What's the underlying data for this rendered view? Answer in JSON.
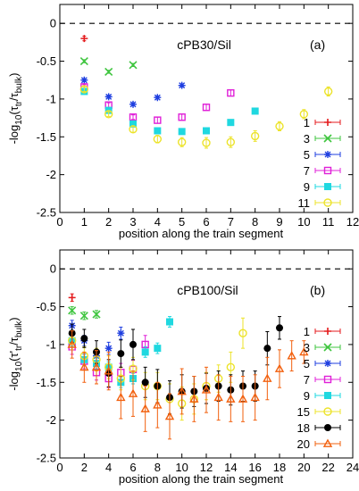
{
  "chart_data": [
    {
      "type": "scatter",
      "panel_label": "(a)",
      "sample_label": "cPB30/Sil",
      "xlabel": "position along the train segment",
      "ylabel_main": "-log",
      "ylabel_sub10": "10",
      "ylabel_open": "(τ",
      "ylabel_tr": "tr",
      "ylabel_slash": "/τ",
      "ylabel_bulk": "bulk",
      "ylabel_close": ")",
      "xlim": [
        0,
        12
      ],
      "ylim": [
        -2.5,
        0.25
      ],
      "xticks": [
        0,
        1,
        2,
        3,
        4,
        5,
        6,
        7,
        8,
        9,
        10,
        11,
        12
      ],
      "yticks": [
        0,
        -0.5,
        -1,
        -1.5,
        -2,
        -2.5
      ],
      "ytick_labels": [
        "0",
        "-0.5",
        "-1",
        "-1.5",
        "-2",
        "-2.5"
      ],
      "reference_line_y": 0,
      "legend_position": "lower-right",
      "series": [
        {
          "name": "1",
          "color": "#e41a1c",
          "marker": "plus",
          "points": [
            [
              1,
              -0.2,
              0.03
            ]
          ]
        },
        {
          "name": "3",
          "color": "#3fc53f",
          "marker": "x",
          "points": [
            [
              1,
              -0.5,
              0.02
            ],
            [
              2,
              -0.64,
              0.02
            ],
            [
              3,
              -0.55,
              0.02
            ]
          ]
        },
        {
          "name": "5",
          "color": "#1f3fe0",
          "marker": "asterisk",
          "points": [
            [
              1,
              -0.75,
              0.02
            ],
            [
              2,
              -0.97,
              0.02
            ],
            [
              3,
              -1.07,
              0.02
            ],
            [
              4,
              -0.98,
              0.02
            ],
            [
              5,
              -0.82,
              0.02
            ]
          ]
        },
        {
          "name": "7",
          "color": "#e020d8",
          "marker": "square-open",
          "points": [
            [
              1,
              -0.84,
              0.03
            ],
            [
              2,
              -1.08,
              0.03
            ],
            [
              3,
              -1.24,
              0.03
            ],
            [
              4,
              -1.28,
              0.04
            ],
            [
              5,
              -1.24,
              0.04
            ],
            [
              6,
              -1.11,
              0.04
            ],
            [
              7,
              -0.92,
              0.04
            ]
          ]
        },
        {
          "name": "9",
          "color": "#1fd8e0",
          "marker": "square-filled",
          "points": [
            [
              1,
              -0.9,
              0.02
            ],
            [
              2,
              -1.15,
              0.02
            ],
            [
              3,
              -1.33,
              0.02
            ],
            [
              4,
              -1.42,
              0.02
            ],
            [
              5,
              -1.43,
              0.02
            ],
            [
              6,
              -1.42,
              0.02
            ],
            [
              7,
              -1.31,
              0.02
            ],
            [
              8,
              -1.16,
              0.02
            ]
          ]
        },
        {
          "name": "11",
          "color": "#ece32a",
          "marker": "circle-open",
          "points": [
            [
              1,
              -0.87,
              0.03
            ],
            [
              2,
              -1.2,
              0.03
            ],
            [
              3,
              -1.4,
              0.04
            ],
            [
              4,
              -1.53,
              0.05
            ],
            [
              5,
              -1.57,
              0.06
            ],
            [
              6,
              -1.58,
              0.07
            ],
            [
              7,
              -1.57,
              0.07
            ],
            [
              8,
              -1.49,
              0.07
            ],
            [
              9,
              -1.36,
              0.06
            ],
            [
              10,
              -1.2,
              0.06
            ],
            [
              11,
              -0.9,
              0.06
            ]
          ]
        }
      ]
    },
    {
      "type": "scatter",
      "panel_label": "(b)",
      "sample_label": "cPB100/Sil",
      "xlabel": "position along the train segment",
      "ylabel_main": "-log",
      "ylabel_sub10": "10",
      "ylabel_open": "(τ'",
      "ylabel_tr": "tr",
      "ylabel_slash": "/τ",
      "ylabel_bulk": "bulk",
      "ylabel_close": ")",
      "xlim": [
        0,
        24
      ],
      "ylim": [
        -2.5,
        0.25
      ],
      "xticks": [
        0,
        2,
        4,
        6,
        8,
        10,
        12,
        14,
        16,
        18,
        20,
        22,
        24
      ],
      "yticks": [
        0,
        -0.5,
        -1,
        -1.5,
        -2,
        -2.5
      ],
      "ytick_labels": [
        "0",
        "-0.5",
        "-1",
        "-1.5",
        "-2",
        "-2.5"
      ],
      "reference_line_y": 0,
      "legend_position": "right",
      "series": [
        {
          "name": "1",
          "color": "#e41a1c",
          "marker": "plus",
          "points": [
            [
              1,
              -0.38,
              0.05
            ]
          ]
        },
        {
          "name": "3",
          "color": "#3fc53f",
          "marker": "x",
          "points": [
            [
              1,
              -0.55,
              0.05
            ],
            [
              2,
              -0.62,
              0.05
            ],
            [
              3,
              -0.6,
              0.05
            ]
          ]
        },
        {
          "name": "5",
          "color": "#1f3fe0",
          "marker": "asterisk",
          "points": [
            [
              1,
              -0.75,
              0.07
            ],
            [
              2,
              -0.95,
              0.07
            ],
            [
              3,
              -1.15,
              0.08
            ],
            [
              4,
              -1.05,
              0.08
            ],
            [
              5,
              -0.85,
              0.08
            ]
          ]
        },
        {
          "name": "7",
          "color": "#e020d8",
          "marker": "square-open",
          "points": [
            [
              1,
              -1.03,
              0.1
            ],
            [
              2,
              -1.22,
              0.1
            ],
            [
              3,
              -1.37,
              0.1
            ],
            [
              4,
              -1.45,
              0.12
            ],
            [
              5,
              -1.37,
              0.12
            ],
            [
              6,
              -1.33,
              0.12
            ],
            [
              7,
              -1.0,
              0.12
            ]
          ]
        },
        {
          "name": "9",
          "color": "#1fd8e0",
          "marker": "square-filled",
          "points": [
            [
              1,
              -0.95,
              0.07
            ],
            [
              2,
              -1.2,
              0.07
            ],
            [
              3,
              -1.25,
              0.07
            ],
            [
              4,
              -1.3,
              0.07
            ],
            [
              5,
              -1.5,
              0.07
            ],
            [
              6,
              -1.45,
              0.07
            ],
            [
              7,
              -1.1,
              0.07
            ],
            [
              8,
              -1.05,
              0.07
            ],
            [
              9,
              -0.7,
              0.07
            ]
          ]
        },
        {
          "name": "15",
          "color": "#ece32a",
          "marker": "circle-open",
          "points": [
            [
              1,
              -0.95,
              0.12
            ],
            [
              2,
              -1.15,
              0.12
            ],
            [
              3,
              -1.2,
              0.15
            ],
            [
              4,
              -1.3,
              0.15
            ],
            [
              5,
              -1.45,
              0.15
            ],
            [
              6,
              -1.32,
              0.15
            ],
            [
              7,
              -1.55,
              0.18
            ],
            [
              8,
              -1.55,
              0.18
            ],
            [
              9,
              -1.72,
              0.2
            ],
            [
              10,
              -1.78,
              0.22
            ],
            [
              11,
              -1.72,
              0.2
            ],
            [
              12,
              -1.55,
              0.18
            ],
            [
              13,
              -1.45,
              0.18
            ],
            [
              14,
              -1.3,
              0.2
            ],
            [
              15,
              -0.85,
              0.2
            ]
          ]
        },
        {
          "name": "18",
          "color": "#000000",
          "marker": "circle-filled",
          "points": [
            [
              1,
              -0.85,
              0.12
            ],
            [
              2,
              -0.92,
              0.12
            ],
            [
              3,
              -1.1,
              0.15
            ],
            [
              4,
              -1.38,
              0.18
            ],
            [
              5,
              -1.12,
              0.18
            ],
            [
              6,
              -1.0,
              0.2
            ],
            [
              7,
              -1.5,
              0.2
            ],
            [
              8,
              -1.55,
              0.22
            ],
            [
              9,
              -1.7,
              0.22
            ],
            [
              10,
              -1.62,
              0.22
            ],
            [
              11,
              -1.62,
              0.2
            ],
            [
              12,
              -1.58,
              0.2
            ],
            [
              13,
              -1.55,
              0.2
            ],
            [
              14,
              -1.6,
              0.2
            ],
            [
              15,
              -1.55,
              0.2
            ],
            [
              16,
              -1.55,
              0.2
            ],
            [
              17,
              -1.05,
              0.22
            ],
            [
              18,
              -0.78,
              0.15
            ]
          ]
        },
        {
          "name": "20",
          "color": "#f2600e",
          "marker": "triangle-open",
          "points": [
            [
              1,
              -1.0,
              0.18
            ],
            [
              2,
              -1.3,
              0.2
            ],
            [
              3,
              -1.3,
              0.22
            ],
            [
              4,
              -1.35,
              0.25
            ],
            [
              5,
              -1.7,
              0.28
            ],
            [
              6,
              -1.65,
              0.3
            ],
            [
              7,
              -1.85,
              0.3
            ],
            [
              8,
              -1.8,
              0.3
            ],
            [
              9,
              -1.95,
              0.3
            ],
            [
              10,
              -1.62,
              0.3
            ],
            [
              11,
              -1.72,
              0.3
            ],
            [
              12,
              -1.6,
              0.3
            ],
            [
              13,
              -1.7,
              0.3
            ],
            [
              14,
              -1.72,
              0.3
            ],
            [
              15,
              -1.72,
              0.3
            ],
            [
              16,
              -1.7,
              0.3
            ],
            [
              17,
              -1.45,
              0.28
            ],
            [
              18,
              -1.32,
              0.25
            ],
            [
              19,
              -1.15,
              0.2
            ],
            [
              20,
              -1.1,
              0.15
            ]
          ]
        }
      ]
    }
  ]
}
